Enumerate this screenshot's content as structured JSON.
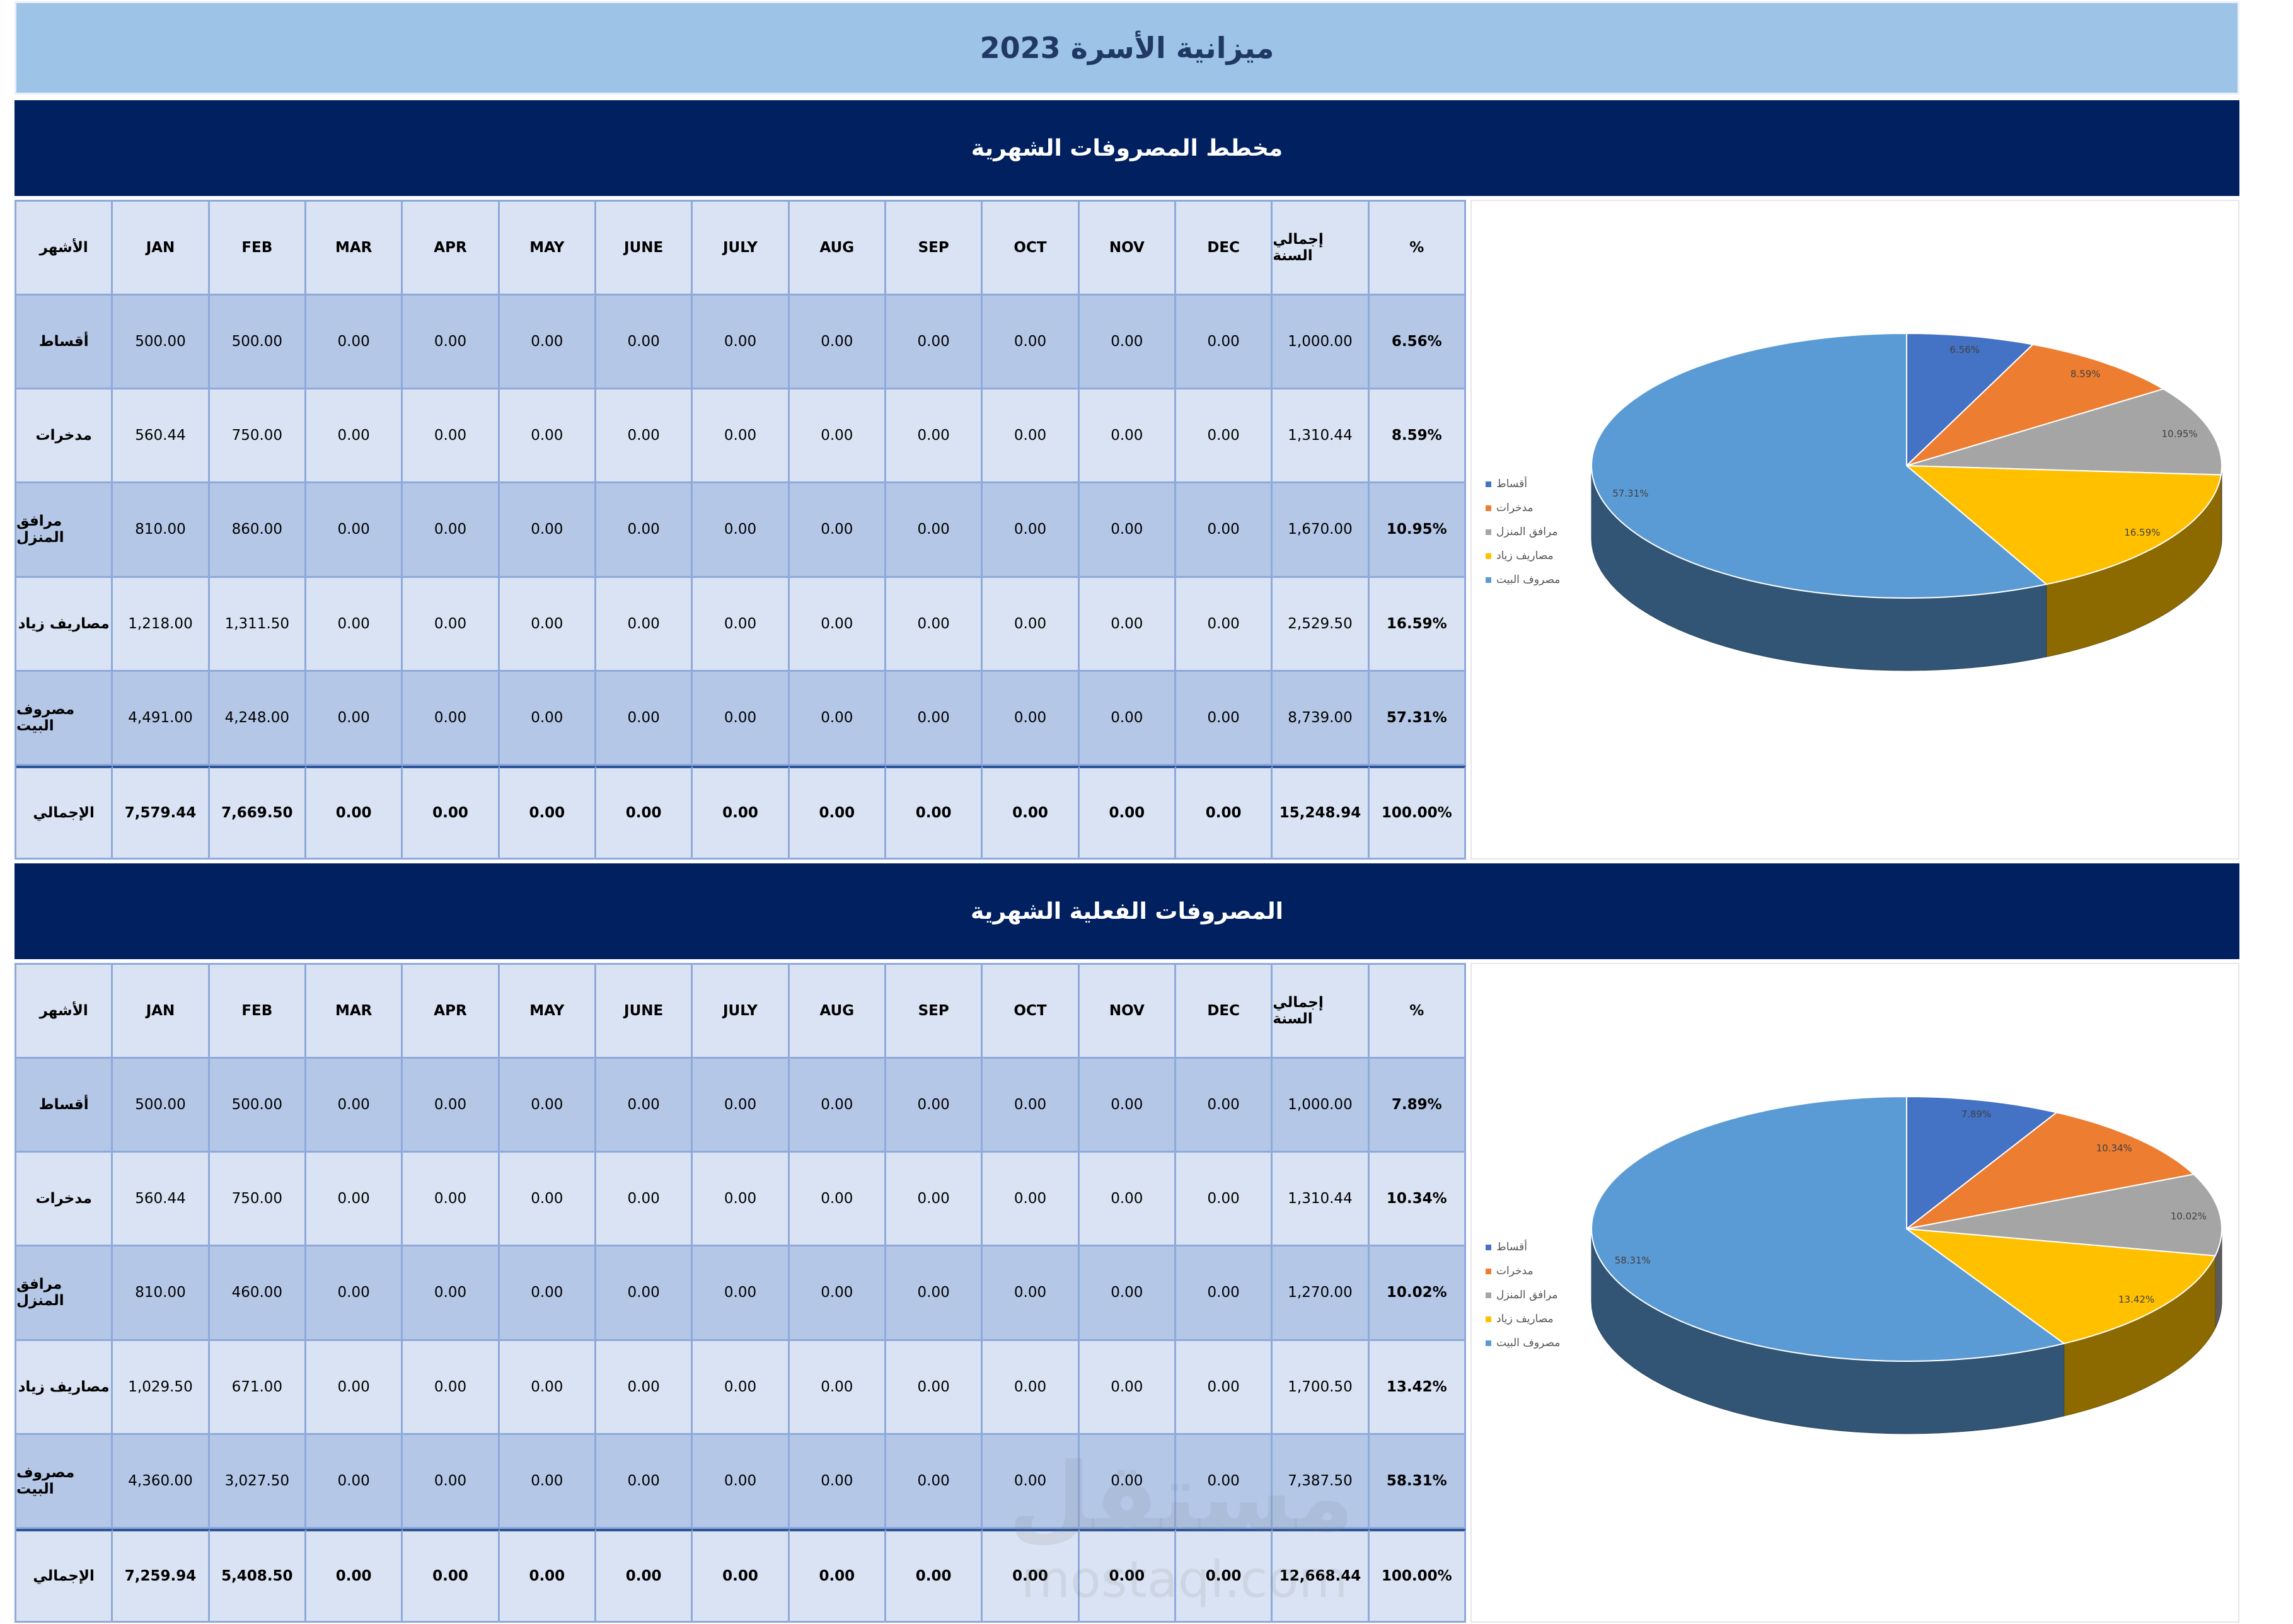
{
  "title": "ميزانية الأسرة 2023",
  "header_labels": [
    "الأشهر",
    "JAN",
    "FEB",
    "MAR",
    "APR",
    "MAY",
    "JUNE",
    "JULY",
    "AUG",
    "SEP",
    "OCT",
    "NOV",
    "DEC",
    "إجمالي السنة",
    "%"
  ],
  "sections": [
    {
      "heading": "مخطط المصروفات الشهرية",
      "rows": [
        {
          "label": "أقساط",
          "values": [
            "500.00",
            "500.00",
            "0.00",
            "0.00",
            "0.00",
            "0.00",
            "0.00",
            "0.00",
            "0.00",
            "0.00",
            "0.00",
            "0.00"
          ],
          "total": "1,000.00",
          "pct": "6.56%"
        },
        {
          "label": "مدخرات",
          "values": [
            "560.44",
            "750.00",
            "0.00",
            "0.00",
            "0.00",
            "0.00",
            "0.00",
            "0.00",
            "0.00",
            "0.00",
            "0.00",
            "0.00"
          ],
          "total": "1,310.44",
          "pct": "8.59%"
        },
        {
          "label": "مرافق المنزل",
          "values": [
            "810.00",
            "860.00",
            "0.00",
            "0.00",
            "0.00",
            "0.00",
            "0.00",
            "0.00",
            "0.00",
            "0.00",
            "0.00",
            "0.00"
          ],
          "total": "1,670.00",
          "pct": "10.95%"
        },
        {
          "label": "مصاريف زياد",
          "values": [
            "1,218.00",
            "1,311.50",
            "0.00",
            "0.00",
            "0.00",
            "0.00",
            "0.00",
            "0.00",
            "0.00",
            "0.00",
            "0.00",
            "0.00"
          ],
          "total": "2,529.50",
          "pct": "16.59%"
        },
        {
          "label": "مصروف البيت",
          "values": [
            "4,491.00",
            "4,248.00",
            "0.00",
            "0.00",
            "0.00",
            "0.00",
            "0.00",
            "0.00",
            "0.00",
            "0.00",
            "0.00",
            "0.00"
          ],
          "total": "8,739.00",
          "pct": "57.31%"
        }
      ],
      "totals": {
        "label": "الإجمالي",
        "values": [
          "7,579.44",
          "7,669.50",
          "0.00",
          "0.00",
          "0.00",
          "0.00",
          "0.00",
          "0.00",
          "0.00",
          "0.00",
          "0.00",
          "0.00"
        ],
        "total": "15,248.94",
        "pct": "100.00%"
      },
      "chart_data": {
        "type": "pie",
        "categories": [
          "أقساط",
          "مدخرات",
          "مرافق المنزل",
          "مصاريف زياد",
          "مصروف البيت"
        ],
        "values": [
          6.56,
          8.59,
          10.95,
          16.59,
          57.31
        ],
        "data_labels": [
          "6.56%",
          "8.59%",
          "10.95%",
          "16.59%",
          "57.31%"
        ],
        "colors": [
          "#4472c4",
          "#ed7d31",
          "#a5a5a5",
          "#ffc000",
          "#5b9bd5"
        ],
        "legend_position": "left",
        "style": "3d"
      }
    },
    {
      "heading": "المصروفات الفعلية الشهرية",
      "rows": [
        {
          "label": "أقساط",
          "values": [
            "500.00",
            "500.00",
            "0.00",
            "0.00",
            "0.00",
            "0.00",
            "0.00",
            "0.00",
            "0.00",
            "0.00",
            "0.00",
            "0.00"
          ],
          "total": "1,000.00",
          "pct": "7.89%"
        },
        {
          "label": "مدخرات",
          "values": [
            "560.44",
            "750.00",
            "0.00",
            "0.00",
            "0.00",
            "0.00",
            "0.00",
            "0.00",
            "0.00",
            "0.00",
            "0.00",
            "0.00"
          ],
          "total": "1,310.44",
          "pct": "10.34%"
        },
        {
          "label": "مرافق المنزل",
          "values": [
            "810.00",
            "460.00",
            "0.00",
            "0.00",
            "0.00",
            "0.00",
            "0.00",
            "0.00",
            "0.00",
            "0.00",
            "0.00",
            "0.00"
          ],
          "total": "1,270.00",
          "pct": "10.02%"
        },
        {
          "label": "مصاريف زياد",
          "values": [
            "1,029.50",
            "671.00",
            "0.00",
            "0.00",
            "0.00",
            "0.00",
            "0.00",
            "0.00",
            "0.00",
            "0.00",
            "0.00",
            "0.00"
          ],
          "total": "1,700.50",
          "pct": "13.42%"
        },
        {
          "label": "مصروف البيت",
          "values": [
            "4,360.00",
            "3,027.50",
            "0.00",
            "0.00",
            "0.00",
            "0.00",
            "0.00",
            "0.00",
            "0.00",
            "0.00",
            "0.00",
            "0.00"
          ],
          "total": "7,387.50",
          "pct": "58.31%"
        }
      ],
      "totals": {
        "label": "الإجمالي",
        "values": [
          "7,259.94",
          "5,408.50",
          "0.00",
          "0.00",
          "0.00",
          "0.00",
          "0.00",
          "0.00",
          "0.00",
          "0.00",
          "0.00",
          "0.00"
        ],
        "total": "12,668.44",
        "pct": "100.00%"
      },
      "chart_data": {
        "type": "pie",
        "categories": [
          "أقساط",
          "مدخرات",
          "مرافق المنزل",
          "مصاريف زياد",
          "مصروف البيت"
        ],
        "values": [
          7.89,
          10.34,
          10.02,
          13.42,
          58.31
        ],
        "data_labels": [
          "7.89%",
          "10.34%",
          "10.02%",
          "13.42%",
          "58.31%"
        ],
        "colors": [
          "#4472c4",
          "#ed7d31",
          "#a5a5a5",
          "#ffc000",
          "#5b9bd5"
        ],
        "legend_position": "left",
        "style": "3d"
      }
    }
  ],
  "watermark": {
    "logo": "مستقل",
    "text": "mostaql.com"
  }
}
